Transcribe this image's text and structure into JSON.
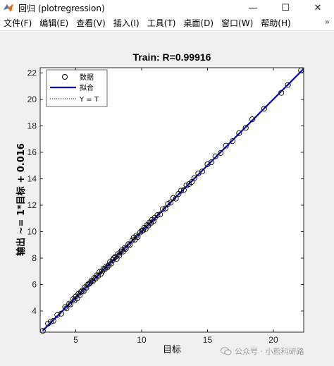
{
  "window": {
    "title": "回归 (plotregression)",
    "controls": {
      "minimize": "—",
      "maximize": "☐",
      "close": "✕"
    }
  },
  "menu": {
    "items": [
      "文件(F)",
      "编辑(E)",
      "查看(V)",
      "插入(I)",
      "工具(T)",
      "桌面(D)",
      "窗口(W)",
      "帮助(H)"
    ],
    "overflow": "»"
  },
  "colors": {
    "fit_line": "#0000cc",
    "background": "#f0f0f0",
    "axes_bg": "#ffffff"
  },
  "chart_data": {
    "type": "scatter",
    "title": "Train: R=0.99916",
    "xlabel": "目标",
    "ylabel": "输出 ~= 1*目标 + 0.016",
    "xlim": [
      2.3,
      22.3
    ],
    "ylim": [
      2.4,
      22.4
    ],
    "xticks": [
      5,
      10,
      15,
      20
    ],
    "yticks": [
      4,
      6,
      8,
      10,
      12,
      14,
      16,
      18,
      20,
      22
    ],
    "grid": false,
    "legend_position": "top-left",
    "legend": [
      {
        "label": "数据",
        "style": "circle-marker"
      },
      {
        "label": "拟合",
        "style": "solid-blue-line"
      },
      {
        "label": "Y = T",
        "style": "dotted-line"
      }
    ],
    "fit": {
      "slope": 1,
      "intercept": 0.016
    },
    "x": [
      2.5,
      2.9,
      3.1,
      3.3,
      3.6,
      3.9,
      4.2,
      4.3,
      4.5,
      4.6,
      4.8,
      4.9,
      5.0,
      5.1,
      5.2,
      5.3,
      5.4,
      5.5,
      5.6,
      5.7,
      5.8,
      5.9,
      6.0,
      6.1,
      6.2,
      6.3,
      6.4,
      6.5,
      6.6,
      6.7,
      6.8,
      6.9,
      7.0,
      7.1,
      7.2,
      7.3,
      7.4,
      7.5,
      7.6,
      7.7,
      7.8,
      7.9,
      8.0,
      8.1,
      8.2,
      8.3,
      8.4,
      8.5,
      8.6,
      8.7,
      8.8,
      9.0,
      9.1,
      9.3,
      9.4,
      9.5,
      9.6,
      9.7,
      9.9,
      10.0,
      10.1,
      10.2,
      10.3,
      10.4,
      10.5,
      10.6,
      10.7,
      10.8,
      10.9,
      11.0,
      11.2,
      11.4,
      11.6,
      11.8,
      12.0,
      12.2,
      12.4,
      12.6,
      12.8,
      13.0,
      13.2,
      13.4,
      13.6,
      13.8,
      14.0,
      14.3,
      14.6,
      15.0,
      15.3,
      15.6,
      16.0,
      16.4,
      16.9,
      17.4,
      17.9,
      18.4,
      19.3,
      20.6,
      21.1,
      22.1
    ],
    "y": [
      2.5,
      3.05,
      3.2,
      3.25,
      3.7,
      3.8,
      4.3,
      4.2,
      4.55,
      4.5,
      4.9,
      4.8,
      5.1,
      4.95,
      5.3,
      5.2,
      5.45,
      5.55,
      5.5,
      5.8,
      5.75,
      6.0,
      6.05,
      6.15,
      6.3,
      6.25,
      6.5,
      6.45,
      6.7,
      6.65,
      6.95,
      6.8,
      7.0,
      7.2,
      7.15,
      7.35,
      7.3,
      7.45,
      7.7,
      7.6,
      7.85,
      8.0,
      8.1,
      7.95,
      8.3,
      8.2,
      8.45,
      8.6,
      8.5,
      8.75,
      8.7,
      9.05,
      9.0,
      9.35,
      9.55,
      9.4,
      9.7,
      9.6,
      9.95,
      10.05,
      10.1,
      10.3,
      10.2,
      10.5,
      10.45,
      10.7,
      10.65,
      10.9,
      10.8,
      11.05,
      11.25,
      11.3,
      11.7,
      11.75,
      12.1,
      12.2,
      12.55,
      12.5,
      12.85,
      13.1,
      13.15,
      13.5,
      13.6,
      13.75,
      14.05,
      14.4,
      14.55,
      15.1,
      15.25,
      15.7,
      15.95,
      16.5,
      16.85,
      17.45,
      17.85,
      18.5,
      19.3,
      20.5,
      21.1,
      22.2
    ]
  },
  "watermark": {
    "text": "公众号 · 小熊科研路"
  }
}
